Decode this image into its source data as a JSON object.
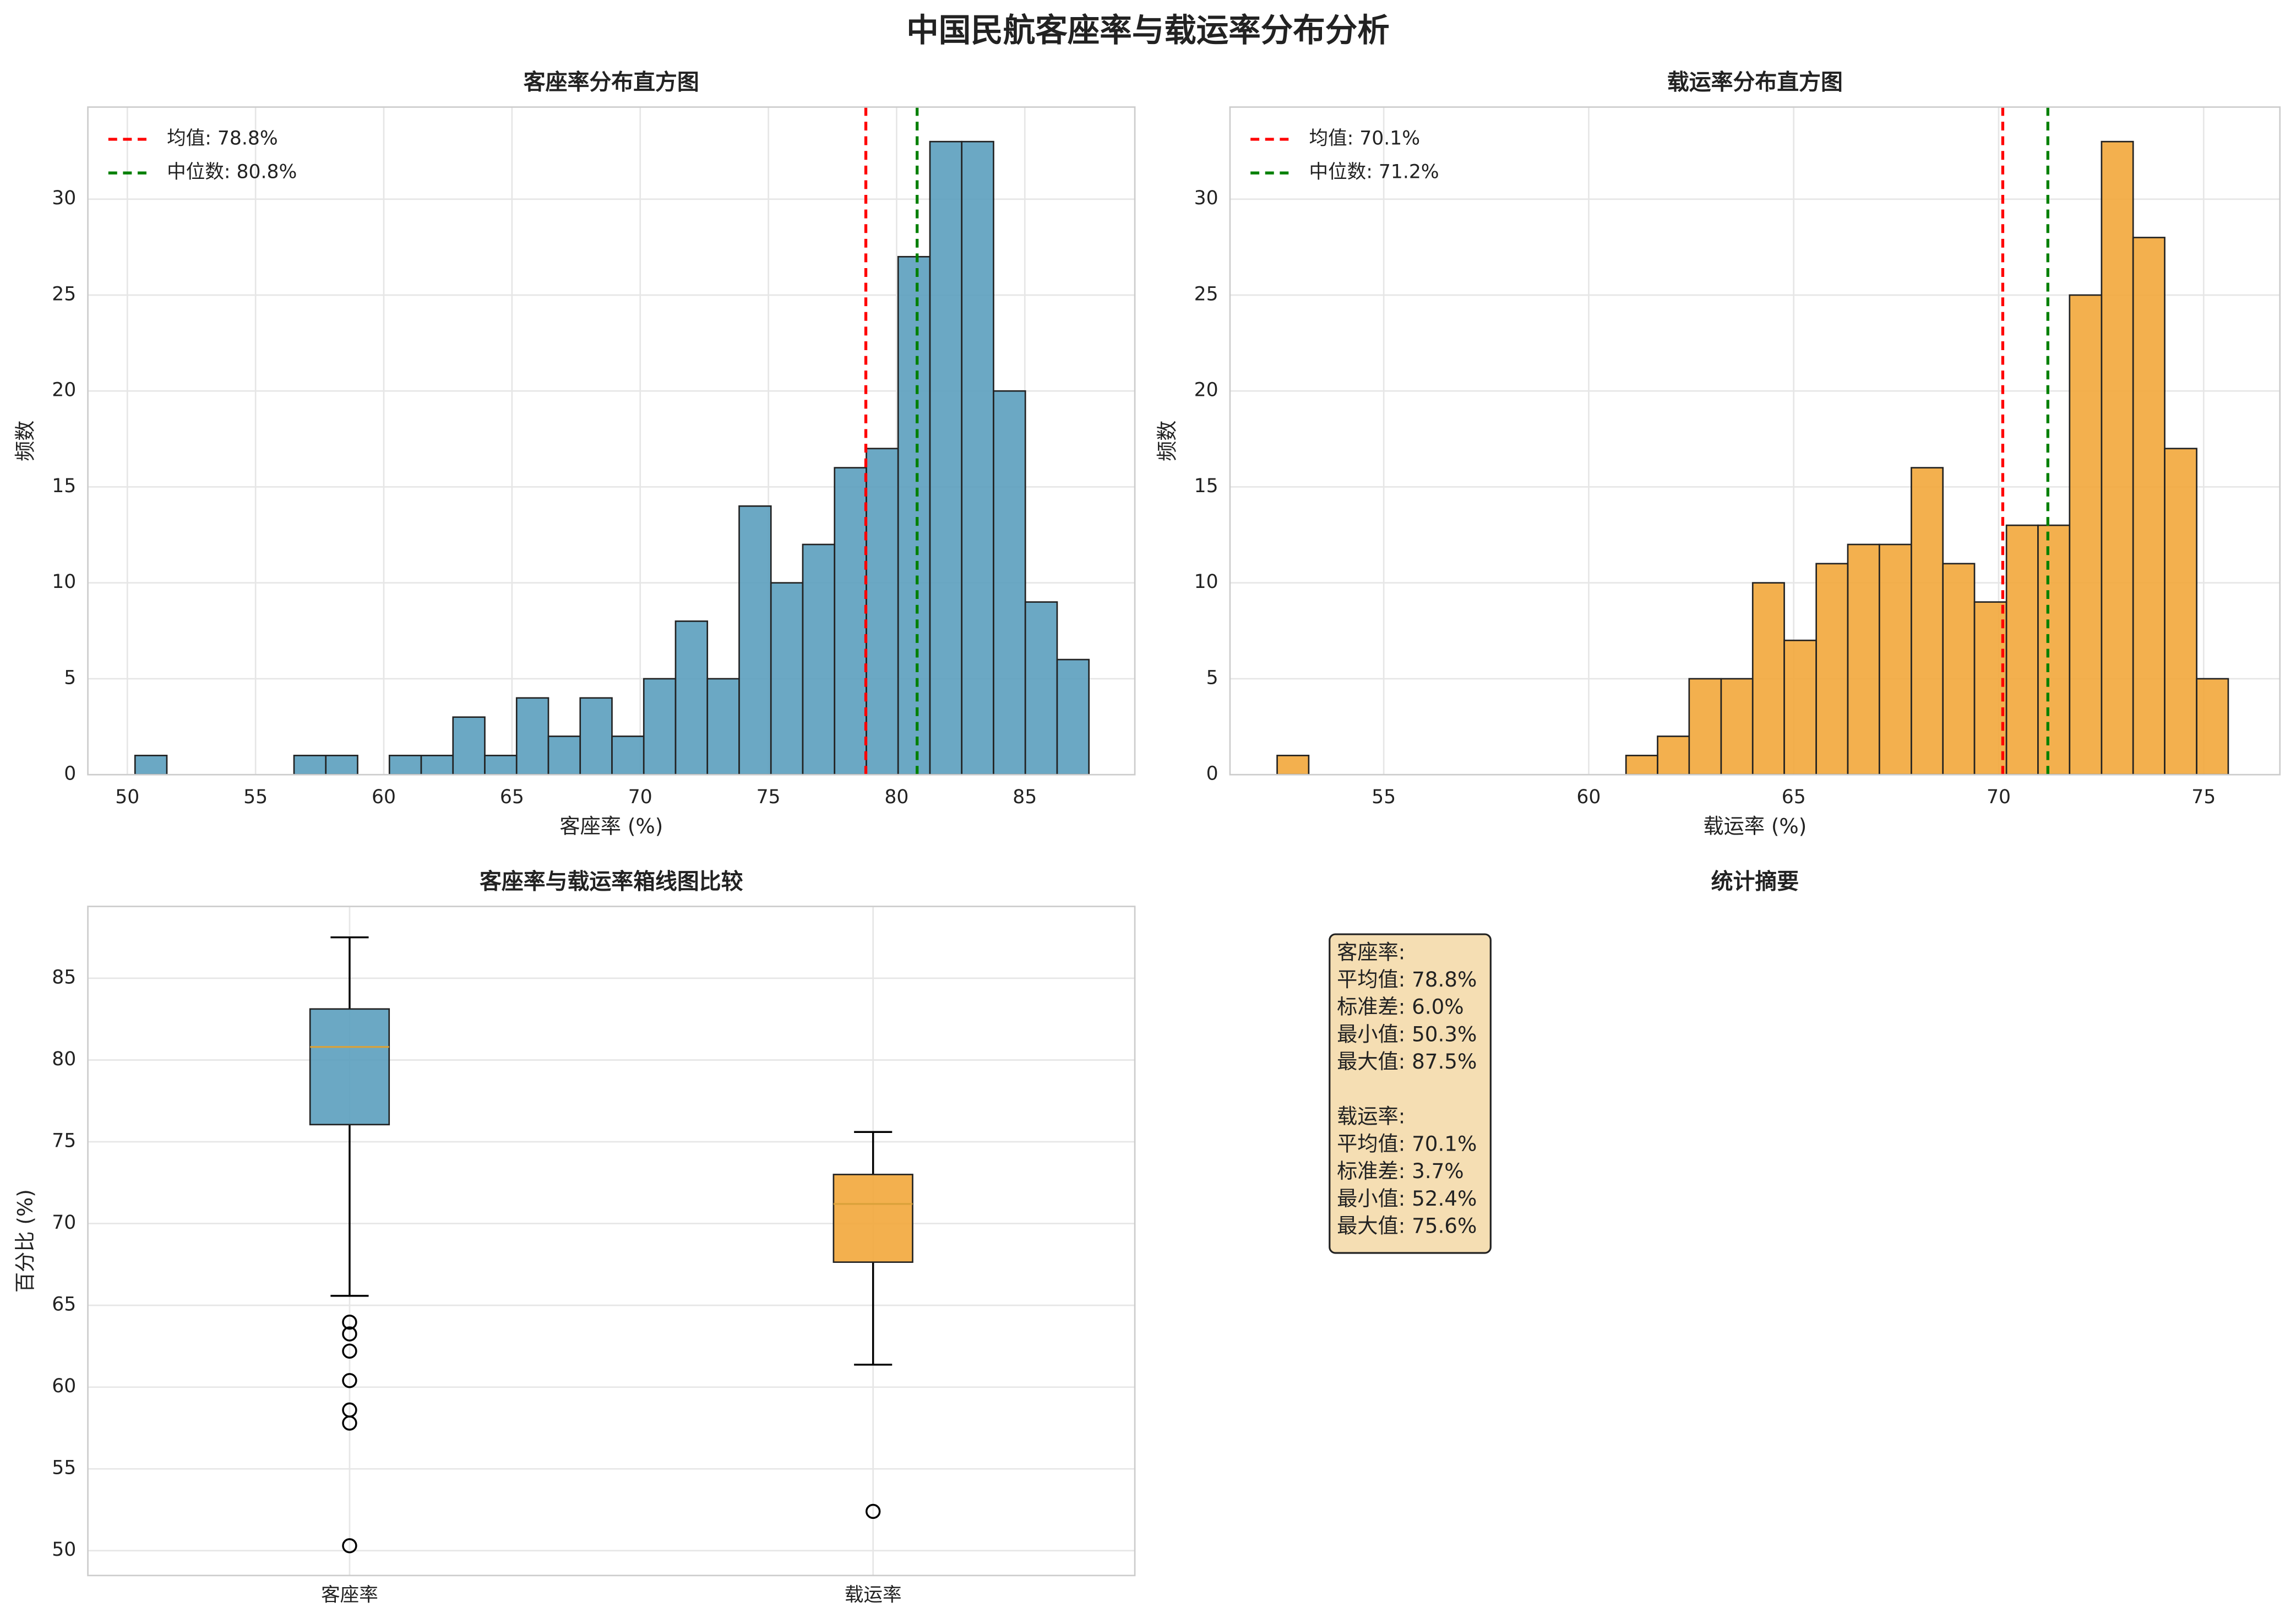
{
  "title": "中国民航客座率与载运率分布分析",
  "chart_data": [
    {
      "type": "histogram",
      "title": "客座率分布直方图",
      "xlabel": "客座率 (%)",
      "ylabel": "频数",
      "color": "#5b9fbe",
      "grid": true,
      "bins": [
        50.3,
        51.54,
        52.78,
        54.02,
        55.26,
        56.5,
        57.74,
        58.98,
        60.22,
        61.46,
        62.7,
        63.94,
        65.18,
        66.42,
        67.66,
        68.9,
        70.14,
        71.38,
        72.62,
        73.86,
        75.1,
        76.34,
        77.58,
        78.82,
        80.06,
        81.3,
        82.54,
        83.78,
        85.02,
        86.26,
        87.5
      ],
      "values": [
        1,
        0,
        0,
        0,
        0,
        1,
        1,
        0,
        1,
        1,
        3,
        1,
        4,
        2,
        4,
        2,
        5,
        8,
        5,
        14,
        10,
        12,
        16,
        17,
        27,
        33,
        33,
        20,
        9,
        6
      ],
      "xlim": [
        48.46,
        89.29
      ],
      "xticks": [
        50,
        55,
        60,
        65,
        70,
        75,
        80,
        85
      ],
      "ylim": [
        0,
        34.8
      ],
      "yticks": [
        0,
        5,
        10,
        15,
        20,
        25,
        30
      ],
      "lines": [
        {
          "name": "均值: 78.8%",
          "value": 78.8,
          "color": "red"
        },
        {
          "name": "中位数: 80.8%",
          "value": 80.8,
          "color": "green"
        }
      ],
      "legend": "upper left"
    },
    {
      "type": "histogram",
      "title": "载运率分布直方图",
      "xlabel": "载运率 (%)",
      "ylabel": "频数",
      "color": "#f2a73b",
      "grid": true,
      "bins": [
        52.4,
        53.17,
        53.95,
        54.72,
        55.49,
        56.27,
        57.04,
        57.81,
        58.59,
        59.36,
        60.13,
        60.91,
        61.68,
        62.45,
        63.23,
        64.0,
        64.77,
        65.55,
        66.32,
        67.09,
        67.87,
        68.64,
        69.41,
        70.19,
        70.96,
        71.73,
        72.51,
        73.28,
        74.05,
        74.83,
        75.6
      ],
      "values": [
        1,
        0,
        0,
        0,
        0,
        0,
        0,
        0,
        0,
        0,
        0,
        1,
        2,
        5,
        5,
        10,
        7,
        11,
        12,
        12,
        16,
        11,
        9,
        13,
        13,
        25,
        33,
        28,
        17,
        5
      ],
      "xlim": [
        51.25,
        76.86
      ],
      "xticks": [
        55,
        60,
        65,
        70,
        75
      ],
      "ylim": [
        0,
        34.8
      ],
      "yticks": [
        0,
        5,
        10,
        15,
        20,
        25,
        30
      ],
      "lines": [
        {
          "name": "均值: 70.1%",
          "value": 70.1,
          "color": "red"
        },
        {
          "name": "中位数: 71.2%",
          "value": 71.2,
          "color": "green"
        }
      ],
      "legend": "upper left"
    },
    {
      "type": "box",
      "title": "客座率与载运率箱线图比较",
      "ylabel": "百分比 (%)",
      "grid": true,
      "categories": [
        "客座率",
        "载运率"
      ],
      "boxes": [
        {
          "color": "#5b9fbe",
          "whislo": 65.58,
          "q1": 76.05,
          "med": 80.8,
          "q3": 83.12,
          "whishi": 87.5,
          "fliers": [
            63.97,
            63.25,
            62.2,
            60.4,
            58.6,
            57.8,
            50.3
          ]
        },
        {
          "color": "#f2a73b",
          "whislo": 61.37,
          "q1": 67.64,
          "med": 71.2,
          "q3": 73.0,
          "whishi": 75.6,
          "fliers": [
            52.4
          ]
        }
      ],
      "ylim": [
        48.48,
        89.39
      ],
      "yticks": [
        50,
        55,
        60,
        65,
        70,
        75,
        80,
        85
      ]
    },
    {
      "type": "text",
      "title": "统计摘要",
      "color": "#f5deb3",
      "blocks": [
        [
          "客座率:",
          "平均值: 78.8%",
          "标准差: 6.0%",
          "最小值: 50.3%",
          "最大值: 87.5%"
        ],
        [
          "载运率:",
          "平均值: 70.1%",
          "标准差: 3.7%",
          "最小值: 52.4%",
          "最大值: 75.6%"
        ]
      ]
    }
  ]
}
